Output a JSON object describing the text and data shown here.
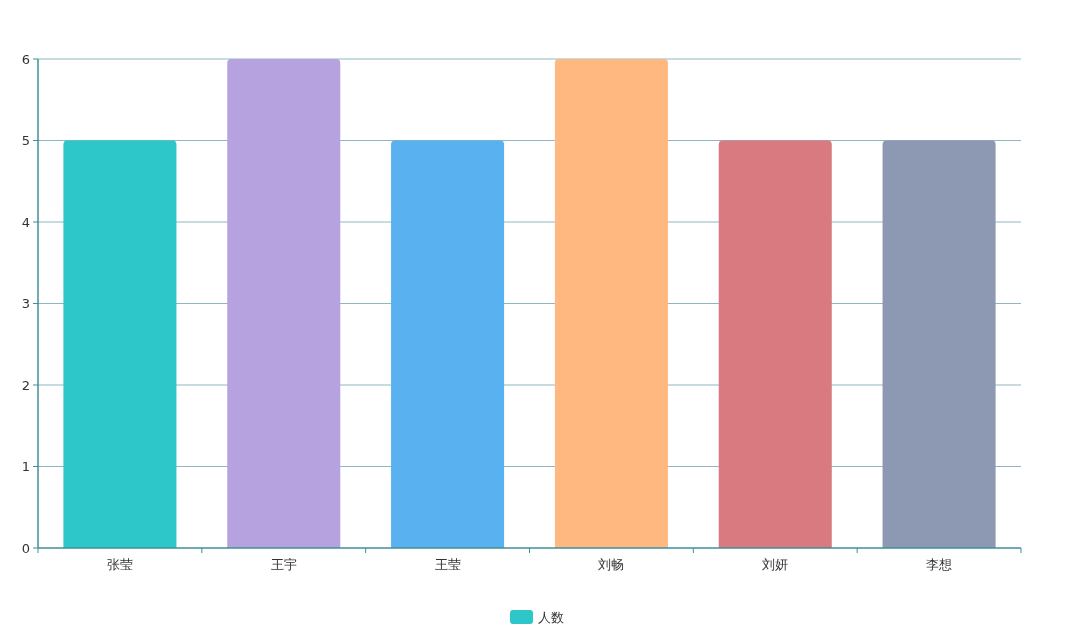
{
  "chart_data": {
    "type": "bar",
    "categories": [
      "张莹",
      "王宇",
      "王莹",
      "刘畅",
      "刘妍",
      "李想"
    ],
    "series": [
      {
        "name": "人数",
        "color": "#2ec7c9",
        "colors": [
          "#2ec7c9",
          "#b6a2de",
          "#5ab1ef",
          "#ffb980",
          "#d87a80",
          "#8d98b3"
        ],
        "values": [
          5,
          6,
          5,
          6,
          5,
          5
        ]
      }
    ],
    "ylim": [
      0,
      6
    ],
    "yticks": [
      0,
      1,
      2,
      3,
      4,
      5,
      6
    ],
    "grid": "y",
    "legend": "bottom"
  }
}
